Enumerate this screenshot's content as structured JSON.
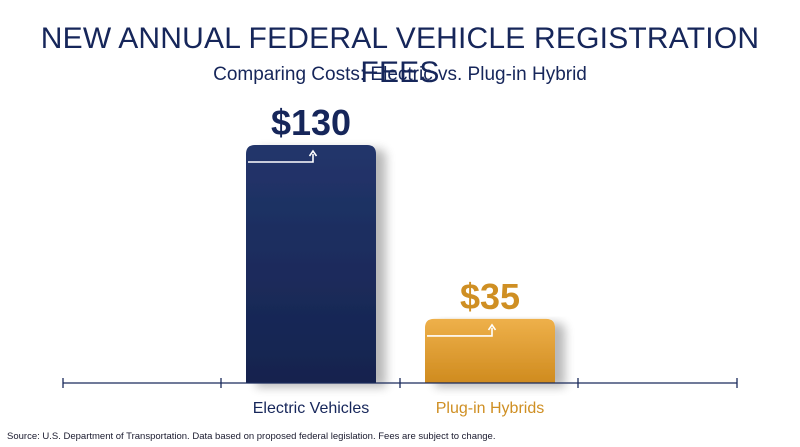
{
  "chart_data": {
    "type": "bar",
    "title": "NEW ANNUAL FEDERAL VEHICLE REGISTRATION FEES",
    "subtitle": "Comparing Costs: Electric vs. Plug-in Hybrid",
    "categories": [
      "Electric Vehicles",
      "Plug-in Hybrids"
    ],
    "values": [
      130,
      35
    ],
    "data_labels": [
      "$130",
      "$35"
    ],
    "ylim": [
      0,
      150
    ],
    "grid": false,
    "legend": "none",
    "source": "Source: U.S. Department of Transportation. Data based on proposed federal legislation. Fees are subject to change."
  },
  "colors": {
    "title": "#16265a",
    "subtitle": "#16265a",
    "bar_electric": "#1b2b5c",
    "bar_hybrid": "#e0a238",
    "label_electric": "#16265a",
    "label_hybrid": "#cf8f23",
    "axis": "#1b2b5c"
  },
  "icons": {
    "bar_marker": "up-arrow-bracket-icon"
  }
}
